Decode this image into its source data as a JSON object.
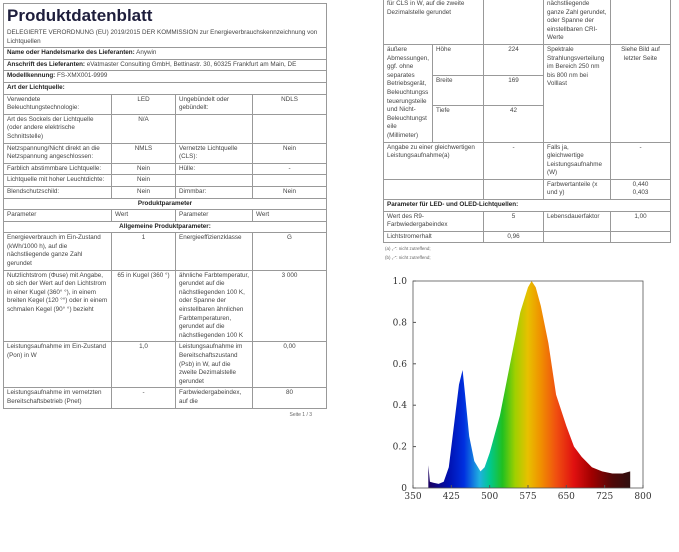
{
  "page1": {
    "title": "Produktdatenblatt",
    "decree": "DELEGIERTE VERORDNUNG (EU) 2019/2015 DER KOMMISSION zur Energieverbrauchskennzeichnung von Lichtquellen",
    "supplier_name_label": "Name oder Handelsmarke des Lieferanten:",
    "supplier_name": "Anywin",
    "address_label": "Anschrift des Lieferanten:",
    "address": "eVatmaster Consulting GmbH, Bettinastr. 30, 60325 Frankfurt am Main, DE",
    "model_label": "Modellkennung:",
    "model": "FS-XMX001-9999",
    "type_heading": "Art der Lichtquelle:",
    "type_rows": [
      [
        "Verwendete Beleuchtungstechnologie:",
        "LED",
        "Ungebündelt oder gebündelt:",
        "NDLS"
      ],
      [
        "Art des Sockels der Lichtquelle (oder andere elektrische Schnittstelle)",
        "N/A",
        "",
        ""
      ],
      [
        "Netzspannung/Nicht direkt an die Netzspannung angeschlossen:",
        "NMLS",
        "Vernetzte Lichtquelle (CLS):",
        "Nein"
      ],
      [
        "Farblich abstimmbare Lichtquelle:",
        "Nein",
        "Hülle:",
        "-"
      ],
      [
        "Lichtquelle mit hoher Leuchtdichte:",
        "Nein",
        "",
        ""
      ],
      [
        "Blendschutzschild:",
        "Nein",
        "Dimmbar:",
        "Nein"
      ]
    ],
    "params_heading": "Produktparameter",
    "params_header": [
      "Parameter",
      "Wert",
      "Parameter",
      "Wert"
    ],
    "general_heading": "Allgemeine Produktparameter:",
    "param_rows": [
      [
        "Energieverbrauch im Ein-Zustand (kWh/1000 h), auf die nächstliegende ganze Zahl gerundet",
        "1",
        "Energieeffizienzklasse",
        "G"
      ],
      [
        "Nutzlichtstrom (Φuse) mit Angabe, ob sich der Wert auf den Lichtstrom in einer Kugel (360° °), in einem breiten Kegel (120 °°) oder in einem schmalen Kegel (90° °) bezieht",
        "65 in Kugel (360 °)",
        "ähnliche Farbtemperatur, gerundet auf die nächstliegenden 100 K, oder Spanne der einstellbaren ähnlichen Farbtemperaturen, gerundet auf die nächstliegenden 100 K",
        "3 000"
      ],
      [
        "Leistungsaufnahme im Ein-Zustand (Pon) in W",
        "1,0",
        "Leistungsaufnahme im Bereitschaftszustand (Psb) in W, auf die zweite Dezimalstelle gerundet",
        "0,00"
      ],
      [
        "Leistungsaufnahme im vernetzten Bereitschaftsbetrieb (Pnet)",
        "-",
        "Farbwiedergabeindex, auf die",
        "80"
      ]
    ],
    "page_number": "Seite 1 / 3"
  },
  "page2": {
    "top_row": [
      "für CLS in W, auf die zweite Dezimalstelle gerundet",
      "",
      "nächstliegende ganze Zahl gerundet, oder Spanne der einstellbaren CRI-Werte",
      ""
    ],
    "dims_label": "äußere Abmessungen, ggf. ohne separates Betriebsgerät, Beleuchtungssteuerungsteile und Nicht-Beleuchtungsteile (Millimeter)",
    "dims": [
      {
        "label": "Höhe",
        "value": "224"
      },
      {
        "label": "Breite",
        "value": "169"
      },
      {
        "label": "Tiefe",
        "value": "42"
      }
    ],
    "spectral_label": "Spektrale Strahlungsverteilung im Bereich 250 nm bis 800 nm bei Volllast",
    "spectral_value": "Siehe Bild auf letzter Seite",
    "equiv_row": [
      "Angabe zu einer gleichwertigen Leistungsaufnahme(a)",
      "-",
      "Falls ja, gleichwertige Leistungsaufnahme (W)",
      "-"
    ],
    "chroma_label": "Farbwertanteile (x und y)",
    "chroma_x": "0,440",
    "chroma_y": "0,403",
    "led_heading": "Parameter für LED- und OLED-Lichtquellen:",
    "led_rows": [
      [
        "Wert des R9-Farbwiedergabeindex",
        "5",
        "Lebensdauerfaktor",
        "1,00"
      ],
      [
        "Lichtstromerhalt",
        "0,96",
        "",
        ""
      ]
    ],
    "footnotes": [
      "(a) „-“: nicht zutreffend;",
      "(b) „-“: nicht zutreffend;"
    ]
  },
  "chart_data": {
    "type": "area",
    "x": [
      380,
      383,
      390,
      400,
      410,
      420,
      430,
      440,
      447,
      452,
      460,
      470,
      482,
      490,
      500,
      520,
      540,
      560,
      575,
      582,
      590,
      600,
      615,
      630,
      650,
      665,
      680,
      700,
      720,
      740,
      760,
      775
    ],
    "y": [
      0.11,
      0.03,
      0.025,
      0.02,
      0.03,
      0.1,
      0.3,
      0.5,
      0.57,
      0.45,
      0.25,
      0.13,
      0.08,
      0.1,
      0.17,
      0.35,
      0.6,
      0.85,
      0.97,
      1.0,
      0.97,
      0.88,
      0.7,
      0.45,
      0.3,
      0.2,
      0.15,
      0.1,
      0.08,
      0.07,
      0.07,
      0.08
    ],
    "xlim": [
      350,
      800
    ],
    "ylim": [
      0,
      1.0
    ],
    "xticks": [
      "350",
      "425",
      "500",
      "575",
      "650",
      "725",
      "800"
    ],
    "yticks": [
      "0",
      "0.2",
      "0.4",
      "0.6",
      "0.8",
      "1.0"
    ],
    "fill": "visible spectrum colors by wavelength",
    "grid": false
  }
}
